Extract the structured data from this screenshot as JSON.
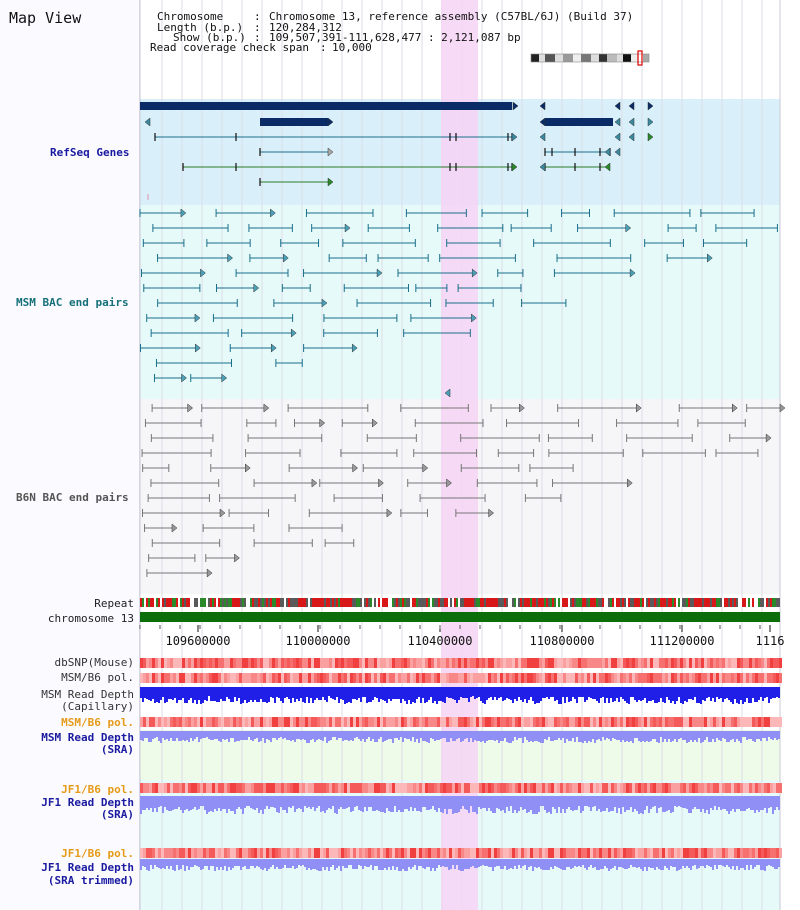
{
  "view_title": "Map View",
  "header": {
    "chromosome_label": "Chromosome",
    "chromosome_value": "Chromosome 13, reference assembly (C57BL/6J) (Build 37)",
    "length_label": "Length (b.p.)",
    "length_value": "120,284,312",
    "show_label": "Show (b.p.)",
    "show_value": "109,507,391-111,628,477 : 2,121,087 bp",
    "read_cov_label": "Read coverage check span",
    "read_cov_value": "10,000"
  },
  "tracks": {
    "refseq": "RefSeq Genes",
    "msm_bac": "MSM BAC end pairs",
    "b6n_bac": "B6N BAC end pairs",
    "repeat": "Repeat",
    "chromosome": "chromosome 13",
    "dbsnp": "dbSNP(Mouse)",
    "msm_b6_pol": "MSM/B6 pol.",
    "msm_read_cap_1": "MSM Read Depth",
    "msm_read_cap_2": "(Capillary)",
    "msm_b6_pol_sra": "MSM/B6 pol.",
    "msm_read_sra_1": "MSM Read Depth",
    "msm_read_sra_2": "(SRA)",
    "jf1_b6_pol": "JF1/B6 pol.",
    "jf1_read_sra_1": "JF1 Read Depth",
    "jf1_read_sra_2": "(SRA)",
    "jf1_b6_pol_2": "JF1/B6 pol.",
    "jf1_read_trim_1": "JF1 Read Depth",
    "jf1_read_trim_2": "(SRA trimmed)"
  },
  "axis": {
    "ticks": [
      "109600000",
      "110000000",
      "110400000",
      "110800000",
      "111200000",
      "1116"
    ]
  },
  "colors": {
    "highlight": "#f6d4f4",
    "refseq_bg": "#d9f0fa",
    "msm_bg": "#e6fafa",
    "b6n_bg": "#f6f6f9",
    "gene_dark": "#0b2b66",
    "msm_line": "#1a6f8a",
    "b6n_line": "#777777",
    "chrom_green": "#0b6e0b",
    "label_blue": "#1a1aa0",
    "label_teal": "#16707a",
    "label_orange": "#e59a1a",
    "snp_red": "#f05050",
    "depth_blue": "#1f1fe8",
    "depth_light": "#8f8ff5"
  }
}
